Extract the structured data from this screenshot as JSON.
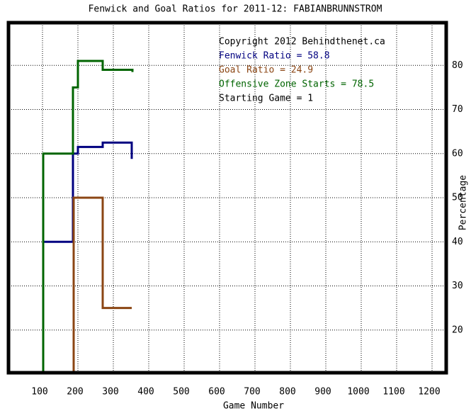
{
  "chart_data": {
    "type": "line",
    "title": "Fenwick and Goal Ratios for 2011-12: FABIANBRUNNSTROM",
    "xlabel": "Game Number",
    "ylabel": "Percentage",
    "annotations": [
      "Copyright 2012 Behindthenet.ca",
      "Starting Game = 1"
    ],
    "xlim": [
      0,
      1244
    ],
    "ylim": [
      10,
      90
    ],
    "xticks": [
      100,
      200,
      300,
      400,
      500,
      600,
      700,
      800,
      900,
      1000,
      1100,
      1200
    ],
    "yticks": [
      20,
      30,
      40,
      50,
      60,
      70,
      80
    ],
    "grid": true,
    "series": [
      {
        "name": "Fenwick Ratio = 58.8",
        "color": "#000080",
        "x": [
          104,
          186,
          186,
          200,
          200,
          270,
          270,
          352,
          352
        ],
        "values": [
          40,
          40,
          60,
          60,
          61.5,
          61.5,
          62.5,
          62.5,
          58.8
        ]
      },
      {
        "name": "Goal Ratio = 24.9",
        "color": "#8b4513",
        "x": [
          188,
          188,
          270,
          270,
          352
        ],
        "values": [
          10,
          50,
          50,
          25,
          25
        ]
      },
      {
        "name": "Offensive Zone Starts = 78.5",
        "color": "#006400",
        "x": [
          102,
          102,
          186,
          186,
          200,
          200,
          270,
          270,
          354,
          354
        ],
        "values": [
          10,
          60,
          60,
          75,
          75,
          81,
          81,
          79,
          79,
          78.5
        ]
      }
    ]
  }
}
